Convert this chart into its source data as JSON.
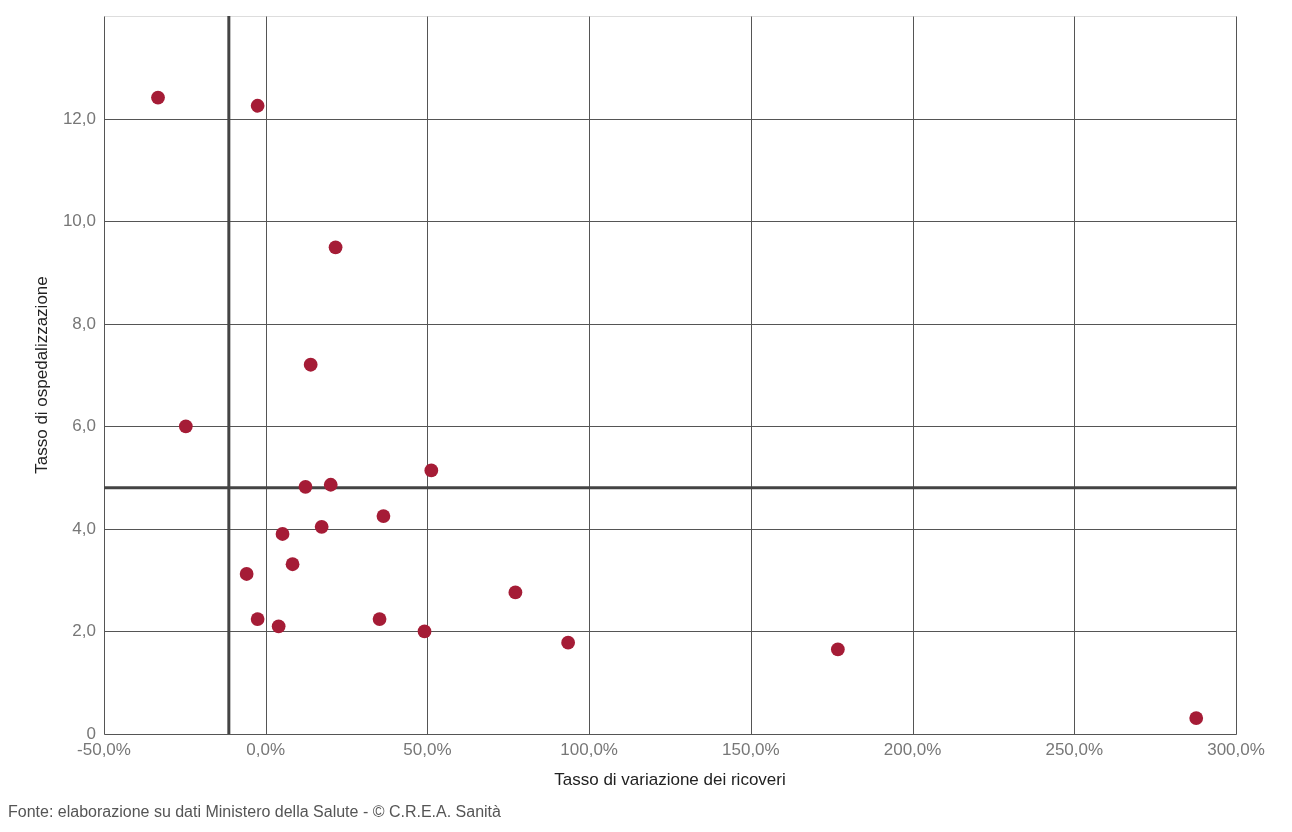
{
  "chart_data": {
    "type": "scatter",
    "xlabel": "Tasso di variazione dei ricoveri",
    "ylabel": "Tasso di ospedalizzazione",
    "annotations": [
      "Fonte: elaborazione su dati Ministero della Salute - © C.R.E.A. Sanità"
    ],
    "x": [
      -33.3,
      -2.5,
      21.6,
      13.9,
      -24.7,
      51.2,
      12.3,
      20.1,
      36.4,
      17.3,
      5.2,
      8.3,
      -5.9,
      77.2,
      -2.5,
      35.2,
      4.0,
      49.1,
      93.5,
      176.9,
      287.7
    ],
    "series": [
      {
        "color": "#a51c36",
        "values": [
          12.41,
          12.25,
          9.49,
          7.2,
          6.0,
          5.14,
          4.82,
          4.86,
          4.25,
          4.04,
          3.9,
          3.31,
          3.12,
          2.76,
          2.24,
          2.24,
          2.1,
          2.0,
          1.78,
          1.65,
          0.31
        ]
      }
    ],
    "xlim": [
      -50,
      300
    ],
    "xticks": [
      {
        "value": -50,
        "label": "-50,0%"
      },
      {
        "value": 0,
        "label": "0,0%"
      },
      {
        "value": 50,
        "label": "50,0%"
      },
      {
        "value": 100,
        "label": "100,0%"
      },
      {
        "value": 150,
        "label": "150,0%"
      },
      {
        "value": 200,
        "label": "200,0%"
      },
      {
        "value": 250,
        "label": "250,0%"
      },
      {
        "value": 300,
        "label": "300,0%"
      }
    ],
    "ylim": [
      0,
      14
    ],
    "yticks": [
      0,
      {
        "value": 2,
        "label": "2,0"
      },
      {
        "value": 4,
        "label": "4,0"
      },
      {
        "value": 6,
        "label": "6,0"
      },
      {
        "value": 8,
        "label": "8,0"
      },
      {
        "value": 10,
        "label": "10,0"
      },
      {
        "value": 12,
        "label": "12,0"
      }
    ],
    "ref_lines": [
      {
        "axis": "x",
        "value": -11.4
      },
      {
        "axis": "y",
        "value": 4.8
      }
    ],
    "grid": true,
    "marker": "circle"
  }
}
